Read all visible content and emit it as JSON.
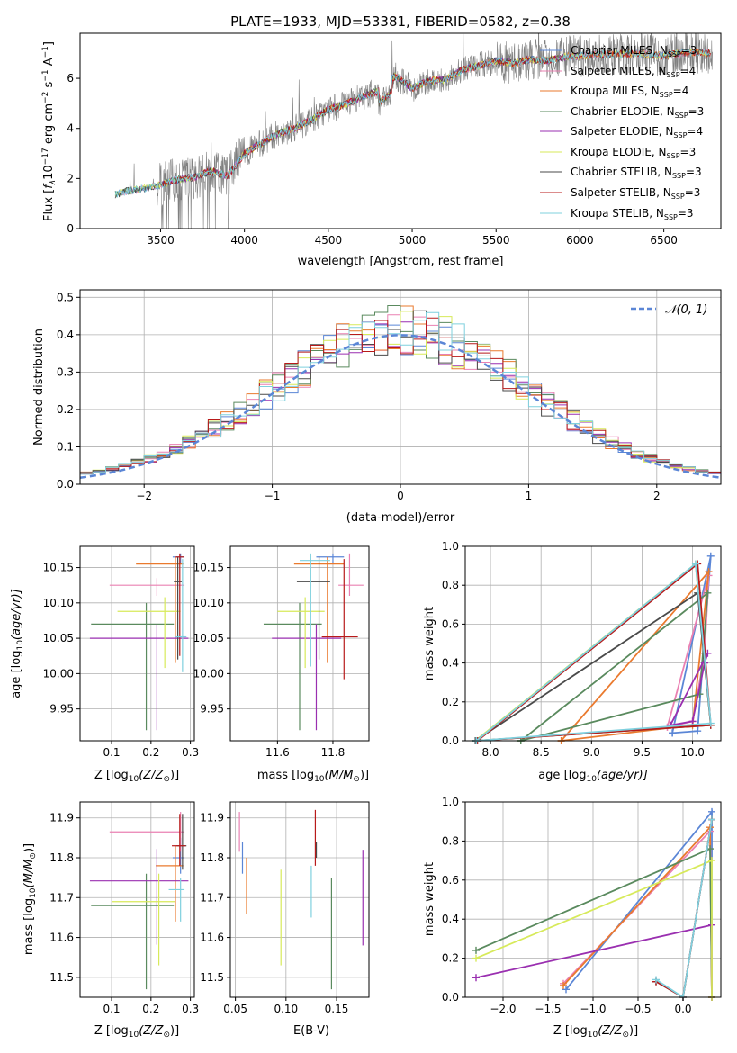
{
  "figure_title": "PLATE=1933, MJD=53381, FIBERID=0582, z=0.38",
  "series": [
    {
      "name": "Chabrier MILES, N_SSP=3",
      "legend_main": "Chabrier MILES, N",
      "legend_sub": "SSP",
      "legend_tail": "=3",
      "color": "#5b86d6"
    },
    {
      "name": "Salpeter MILES, N_SSP=4",
      "legend_main": "Salpeter MILES, N",
      "legend_sub": "SSP",
      "legend_tail": "=4",
      "color": "#ea80b2"
    },
    {
      "name": "Kroupa MILES, N_SSP=4",
      "legend_main": "Kroupa MILES, N",
      "legend_sub": "SSP",
      "legend_tail": "=4",
      "color": "#ea7a2e"
    },
    {
      "name": "Chabrier ELODIE, N_SSP=3",
      "legend_main": "Chabrier ELODIE, N",
      "legend_sub": "SSP",
      "legend_tail": "=3",
      "color": "#5a8a5e"
    },
    {
      "name": "Salpeter ELODIE, N_SSP=4",
      "legend_main": "Salpeter ELODIE, N",
      "legend_sub": "SSP",
      "legend_tail": "=4",
      "color": "#9a2fb0"
    },
    {
      "name": "Kroupa ELODIE, N_SSP=3",
      "legend_main": "Kroupa ELODIE, N",
      "legend_sub": "SSP",
      "legend_tail": "=3",
      "color": "#d7ea5a"
    },
    {
      "name": "Chabrier STELIB, N_SSP=3",
      "legend_main": "Chabrier STELIB, N",
      "legend_sub": "SSP",
      "legend_tail": "=3",
      "color": "#4a4a4a"
    },
    {
      "name": "Salpeter STELIB, N_SSP=3",
      "legend_main": "Salpeter STELIB, N",
      "legend_sub": "SSP",
      "legend_tail": "=3",
      "color": "#b81a1a"
    },
    {
      "name": "Kroupa STELIB, N_SSP=3",
      "legend_main": "Kroupa STELIB, N",
      "legend_sub": "SSP",
      "legend_tail": "=3",
      "color": "#7fd0de"
    }
  ],
  "chart_data": [
    {
      "id": "spectrum",
      "type": "line",
      "xlabel": "wavelength [Angstrom, rest frame]",
      "ylabel_main": "Flux [",
      "ylabel_f": "f",
      "ylabel_lam": "λ",
      "ylabel_exp_base": "10",
      "ylabel_exp": "−17",
      "ylabel_units": " erg cm",
      "ylabel_u1": "−2",
      "ylabel_s": " s",
      "ylabel_u2": "−1",
      "ylabel_A": " A",
      "ylabel_u3": "−1",
      "ylabel_close": "]",
      "xlim": [
        3020,
        6840
      ],
      "ylim": [
        0,
        7.8
      ],
      "xticks": [
        3500,
        4000,
        4500,
        5000,
        5500,
        6000,
        6500
      ],
      "yticks": [
        0,
        2,
        4,
        6
      ],
      "data_x": [
        3200,
        3300,
        3400,
        3500,
        3600,
        3700,
        3800,
        3900,
        4000,
        4100,
        4200,
        4300,
        4400,
        4500,
        4600,
        4700,
        4800,
        4900,
        5000,
        5100,
        5200,
        5300,
        5400,
        5500,
        5600,
        5700,
        5800,
        5900,
        6000,
        6100,
        6200,
        6300,
        6400,
        6500,
        6600,
        6700,
        6800
      ],
      "data_y": [
        1.3,
        1.5,
        1.6,
        1.75,
        1.95,
        2.05,
        2.3,
        2.1,
        3.0,
        3.4,
        3.8,
        4.0,
        4.35,
        4.75,
        4.95,
        5.25,
        5.5,
        6.1,
        5.6,
        5.9,
        5.95,
        6.35,
        6.5,
        6.7,
        6.6,
        6.75,
        6.7,
        6.85,
        6.9,
        6.95,
        6.95,
        7.0,
        6.95,
        6.9,
        7.0,
        7.05,
        7.0
      ],
      "fit_start": [
        3230,
        3230,
        3980,
        3230,
        3510,
        3230,
        3230,
        3510,
        3230
      ],
      "fit_end": [
        6620,
        6760,
        6760,
        5920,
        6000,
        6780,
        6780,
        6780,
        6780
      ],
      "legend_loc": "upper right"
    },
    {
      "id": "residuals",
      "type": "step",
      "xlabel": "(data-model)/error",
      "ylabel": "Normed distribution",
      "xlim": [
        -2.5,
        2.5
      ],
      "ylim": [
        0,
        0.52
      ],
      "xticks": [
        -2,
        -1,
        0,
        1,
        2
      ],
      "xtick_labels": [
        "−2",
        "−1",
        "0",
        "1",
        "2"
      ],
      "yticks": [
        0.0,
        0.1,
        0.2,
        0.3,
        0.4,
        0.5
      ],
      "ytick_labels": [
        "0.0",
        "0.1",
        "0.2",
        "0.3",
        "0.4",
        "0.5"
      ],
      "grid": true,
      "normal_label": "𝒩(0, 1)",
      "normal_color": "#5b86d6",
      "bin_width": 0.1,
      "legend_loc": "upper right"
    },
    {
      "id": "age_vs_Z",
      "type": "errorbar",
      "xlabel_main": "Z [log",
      "xlabel_sub": "10",
      "xlabel_tail": "(Z/Z",
      "xlabel_sun": "⊙",
      "xlabel_close": ")]",
      "ylabel_main": "age  [log",
      "ylabel_sub": "10",
      "ylabel_tail": "(age/yr)]",
      "xlim": [
        0.02,
        0.31
      ],
      "ylim": [
        9.905,
        10.18
      ],
      "xticks": [
        0.1,
        0.2,
        0.3
      ],
      "xtick_labels": [
        "0.1",
        "0.2",
        "0.3"
      ],
      "yticks": [
        9.95,
        10.0,
        10.05,
        10.1,
        10.15
      ],
      "ytick_labels": [
        "9.95",
        "10.00",
        "10.05",
        "10.10",
        "10.15"
      ],
      "grid": true,
      "points": [
        {
          "x": 0.275,
          "xerr": [
            0.02,
            0.01
          ],
          "y": 10.165,
          "yerr": [
            0.01,
            0.005
          ]
        },
        {
          "x": 0.215,
          "xerr": [
            0.12,
            0.07
          ],
          "y": 10.125,
          "yerr": [
            0.015,
            0.01
          ]
        },
        {
          "x": 0.262,
          "xerr": [
            0.1,
            0.02
          ],
          "y": 10.155,
          "yerr": [
            0.14,
            0.01
          ]
        },
        {
          "x": 0.188,
          "xerr": [
            0.14,
            0.07
          ],
          "y": 10.07,
          "yerr": [
            0.15,
            0.03
          ]
        },
        {
          "x": 0.215,
          "xerr": [
            0.17,
            0.08
          ],
          "y": 10.05,
          "yerr": [
            0.13,
            0.02
          ]
        },
        {
          "x": 0.235,
          "xerr": [
            0.12,
            0.04
          ],
          "y": 10.088,
          "yerr": [
            0.08,
            0.02
          ]
        },
        {
          "x": 0.268,
          "xerr": [
            0.01,
            0.01
          ],
          "y": 10.13,
          "yerr": [
            0.11,
            0.035
          ]
        },
        {
          "x": 0.273,
          "xerr": [
            0.01,
            0.01
          ],
          "y": 10.165,
          "yerr": [
            0.14,
            0.005
          ]
        },
        {
          "x": 0.28,
          "xerr": [
            0.02,
            0.01
          ],
          "y": 10.052,
          "yerr": [
            0.05,
            0.11
          ]
        }
      ]
    },
    {
      "id": "age_vs_mass",
      "type": "errorbar",
      "xlabel_main": "mass [log",
      "xlabel_sub": "10",
      "xlabel_tail": "(M/M",
      "xlabel_sun": "⊙",
      "xlabel_close": ")]",
      "xlim": [
        11.43,
        11.93
      ],
      "ylim": [
        9.905,
        10.18
      ],
      "xticks": [
        11.6,
        11.8
      ],
      "xtick_labels": [
        "11.6",
        "11.8"
      ],
      "yticks": [
        9.95,
        10.0,
        10.05,
        10.1,
        10.15
      ],
      "ytick_labels": [
        "9.95",
        "10.00",
        "10.05",
        "10.10",
        "10.15"
      ],
      "grid": true,
      "points": [
        {
          "x": 11.8,
          "xerr": [
            0.06,
            0.04
          ],
          "y": 10.165,
          "yerr": [
            0.01,
            0.005
          ]
        },
        {
          "x": 11.86,
          "xerr": [
            0.04,
            0.05
          ],
          "y": 10.125,
          "yerr": [
            0.015,
            0.045
          ]
        },
        {
          "x": 11.78,
          "xerr": [
            0.12,
            0.06
          ],
          "y": 10.155,
          "yerr": [
            0.14,
            0.01
          ]
        },
        {
          "x": 11.68,
          "xerr": [
            0.13,
            0.08
          ],
          "y": 10.07,
          "yerr": [
            0.15,
            0.03
          ]
        },
        {
          "x": 11.74,
          "xerr": [
            0.16,
            0.09
          ],
          "y": 10.05,
          "yerr": [
            0.13,
            0.02
          ]
        },
        {
          "x": 11.7,
          "xerr": [
            0.1,
            0.07
          ],
          "y": 10.088,
          "yerr": [
            0.08,
            0.02
          ]
        },
        {
          "x": 11.75,
          "xerr": [
            0.08,
            0.04
          ],
          "y": 10.13,
          "yerr": [
            0.11,
            0.035
          ]
        },
        {
          "x": 11.84,
          "xerr": [
            0.08,
            0.05
          ],
          "y": 10.052,
          "yerr": [
            0.06,
            0.11
          ]
        },
        {
          "x": 11.72,
          "xerr": [
            0.04,
            0.07
          ],
          "y": 10.16,
          "yerr": [
            0.15,
            0.01
          ]
        }
      ]
    },
    {
      "id": "weight_vs_age",
      "type": "line",
      "xlabel_main": "age  [log",
      "xlabel_sub": "10",
      "xlabel_tail": "(age/yr)]",
      "ylabel": "mass weight",
      "xlim": [
        7.75,
        10.28
      ],
      "ylim": [
        0,
        1.0
      ],
      "xticks": [
        8.0,
        8.5,
        9.0,
        9.5,
        10.0
      ],
      "xtick_labels": [
        "8.0",
        "8.5",
        "9.0",
        "9.5",
        "10.0"
      ],
      "yticks": [
        0.0,
        0.2,
        0.4,
        0.6,
        0.8,
        1.0
      ],
      "ytick_labels": [
        "0.0",
        "0.2",
        "0.4",
        "0.6",
        "0.8",
        "1.0"
      ],
      "grid": true,
      "lines": [
        {
          "x": [
            9.8,
            10.05,
            10.18,
            9.8
          ],
          "y": [
            0.04,
            0.05,
            0.95,
            0.04
          ]
        },
        {
          "x": [
            9.75,
            10.0,
            10.12,
            10.16,
            9.75
          ],
          "y": [
            0.07,
            0.1,
            0.45,
            0.85,
            0.07
          ]
        },
        {
          "x": [
            8.7,
            10.0,
            10.16,
            8.7
          ],
          "y": [
            0.0,
            0.08,
            0.87,
            0.0
          ]
        },
        {
          "x": [
            8.3,
            10.07,
            10.15,
            8.3
          ],
          "y": [
            0.0,
            0.24,
            0.76,
            0.0
          ]
        },
        {
          "x": [
            9.78,
            10.0,
            10.12,
            10.15,
            9.78
          ],
          "y": [
            0.08,
            0.1,
            0.4,
            0.45,
            0.08
          ]
        },
        {
          "x": [
            7.85,
            10.03,
            10.18,
            7.85
          ],
          "y": [
            0.0,
            0.91,
            0.08,
            0.0
          ]
        },
        {
          "x": [
            7.85,
            10.05,
            10.18,
            7.85
          ],
          "y": [
            0.0,
            0.76,
            0.08,
            0.0
          ]
        },
        {
          "x": [
            7.87,
            10.05,
            10.18,
            7.87
          ],
          "y": [
            0.0,
            0.91,
            0.08,
            0.0
          ]
        },
        {
          "x": [
            7.86,
            10.03,
            10.18,
            7.86
          ],
          "y": [
            0.0,
            0.91,
            0.09,
            0.0
          ]
        }
      ]
    },
    {
      "id": "mass_vs_Z",
      "type": "errorbar",
      "xlabel_main": "Z [log",
      "xlabel_sub": "10",
      "xlabel_tail": "(Z/Z",
      "xlabel_sun": "⊙",
      "xlabel_close": ")]",
      "ylabel_main": "mass [log",
      "ylabel_sub": "10",
      "ylabel_tail": "(M/M",
      "ylabel_sun": "⊙",
      "ylabel_close": ")]",
      "xlim": [
        0.02,
        0.31
      ],
      "ylim": [
        11.45,
        11.94
      ],
      "xticks": [
        0.1,
        0.2,
        0.3
      ],
      "xtick_labels": [
        "0.1",
        "0.2",
        "0.3"
      ],
      "yticks": [
        11.5,
        11.6,
        11.7,
        11.8,
        11.9
      ],
      "ytick_labels": [
        "11.5",
        "11.6",
        "11.7",
        "11.8",
        "11.9"
      ],
      "grid": true,
      "points": [
        {
          "x": 0.275,
          "xerr": [
            0.02,
            0.01
          ],
          "y": 11.8,
          "yerr": [
            0.04,
            0.05
          ]
        },
        {
          "x": 0.275,
          "xerr": [
            0.18,
            0.01
          ],
          "y": 11.865,
          "yerr": [
            0.05,
            0.05
          ]
        },
        {
          "x": 0.262,
          "xerr": [
            0.05,
            0.02
          ],
          "y": 11.78,
          "yerr": [
            0.14,
            0.05
          ]
        },
        {
          "x": 0.188,
          "xerr": [
            0.14,
            0.07
          ],
          "y": 11.68,
          "yerr": [
            0.21,
            0.08
          ]
        },
        {
          "x": 0.215,
          "xerr": [
            0.17,
            0.08
          ],
          "y": 11.742,
          "yerr": [
            0.16,
            0.08
          ]
        },
        {
          "x": 0.22,
          "xerr": [
            0.12,
            0.04
          ],
          "y": 11.69,
          "yerr": [
            0.16,
            0.07
          ]
        },
        {
          "x": 0.28,
          "xerr": [
            0.015,
            0.01
          ],
          "y": 11.83,
          "yerr": [
            0.06,
            0.08
          ]
        },
        {
          "x": 0.273,
          "xerr": [
            0.02,
            0.015
          ],
          "y": 11.83,
          "yerr": [
            0.05,
            0.08
          ]
        },
        {
          "x": 0.275,
          "xerr": [
            0.03,
            0.01
          ],
          "y": 11.72,
          "yerr": [
            0.08,
            0.03
          ]
        }
      ]
    },
    {
      "id": "mass_vs_ebv",
      "type": "errorbar",
      "xlabel": "E(B-V)",
      "xlim": [
        0.045,
        0.182
      ],
      "ylim": [
        11.45,
        11.94
      ],
      "xticks": [
        0.05,
        0.1,
        0.15
      ],
      "xtick_labels": [
        "0.05",
        "0.10",
        "0.15"
      ],
      "yticks": [
        11.5,
        11.6,
        11.7,
        11.8,
        11.9
      ],
      "ytick_labels": [
        "11.5",
        "11.6",
        "11.7",
        "11.8",
        "11.9"
      ],
      "grid": true,
      "points": [
        {
          "x": 0.057,
          "y": 11.8,
          "yerr": [
            0.04,
            0.04
          ]
        },
        {
          "x": 0.054,
          "y": 11.865,
          "yerr": [
            0.05,
            0.05
          ]
        },
        {
          "x": 0.061,
          "y": 11.73,
          "yerr": [
            0.07,
            0.07
          ]
        },
        {
          "x": 0.145,
          "y": 11.61,
          "yerr": [
            0.14,
            0.14
          ]
        },
        {
          "x": 0.176,
          "y": 11.7,
          "yerr": [
            0.12,
            0.12
          ]
        },
        {
          "x": 0.095,
          "y": 11.65,
          "yerr": [
            0.12,
            0.12
          ]
        },
        {
          "x": 0.13,
          "y": 11.82,
          "yerr": [
            0.02,
            0.02
          ]
        },
        {
          "x": 0.129,
          "y": 11.85,
          "yerr": [
            0.07,
            0.07
          ]
        },
        {
          "x": 0.125,
          "y": 11.72,
          "yerr": [
            0.07,
            0.06
          ]
        }
      ]
    },
    {
      "id": "weight_vs_Z",
      "type": "line",
      "xlabel_main": "Z [log",
      "xlabel_sub": "10",
      "xlabel_tail": "(Z/Z",
      "xlabel_sun": "⊙",
      "xlabel_close": ")]",
      "ylabel": "mass weight",
      "xlim": [
        -2.42,
        0.42
      ],
      "ylim": [
        0,
        1.0
      ],
      "xticks": [
        -2.0,
        -1.5,
        -1.0,
        -0.5,
        0.0
      ],
      "xtick_labels": [
        "−2.0",
        "−1.5",
        "−1.0",
        "−0.5",
        "0.0"
      ],
      "yticks": [
        0.0,
        0.2,
        0.4,
        0.6,
        0.8,
        1.0
      ],
      "ytick_labels": [
        "0.0",
        "0.2",
        "0.4",
        "0.6",
        "0.8",
        "1.0"
      ],
      "grid": true,
      "lines": [
        {
          "x": [
            -1.3,
            0.32,
            0.32
          ],
          "y": [
            0.04,
            0.95,
            0.0
          ]
        },
        {
          "x": [
            -1.33,
            0.3,
            0.32
          ],
          "y": [
            0.07,
            0.85,
            0.0
          ]
        },
        {
          "x": [
            -1.33,
            0.3,
            0.32
          ],
          "y": [
            0.06,
            0.87,
            0.0
          ]
        },
        {
          "x": [
            -2.3,
            0.3,
            0.32
          ],
          "y": [
            0.24,
            0.76,
            0.0
          ]
        },
        {
          "x": [
            -2.3,
            0.32,
            0.32
          ],
          "y": [
            0.1,
            0.37,
            0.0
          ]
        },
        {
          "x": [
            -2.3,
            0.32,
            0.32
          ],
          "y": [
            0.2,
            0.7,
            0.0
          ]
        },
        {
          "x": [
            -0.3,
            0.0,
            0.32
          ],
          "y": [
            0.08,
            0.0,
            0.91
          ]
        },
        {
          "x": [
            -0.3,
            0.0,
            0.32
          ],
          "y": [
            0.08,
            0.0,
            0.91
          ]
        },
        {
          "x": [
            -0.3,
            0.0,
            0.32
          ],
          "y": [
            0.09,
            0.0,
            0.91
          ]
        }
      ]
    }
  ]
}
